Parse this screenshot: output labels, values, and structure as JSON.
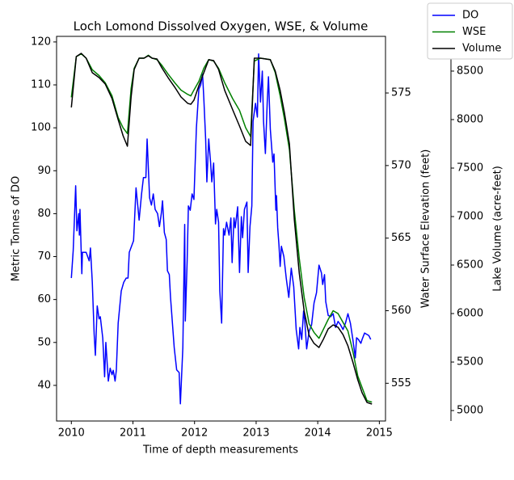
{
  "chart_data": {
    "type": "line",
    "title": "Loch Lomond Dissolved Oxygen, WSE, & Volume",
    "x_label": "Time of depth measurements",
    "y_label": "Metric Tonnes of DO",
    "y2_label": "Water Surface Elevation (feet)",
    "y3_label": "Lake Volume (acre-feet)",
    "xlim": [
      2009.76,
      2015.1
    ],
    "xticks": [
      2010,
      2011,
      2012,
      2013,
      2014,
      2015
    ],
    "ylim": [
      31.7,
      121.3
    ],
    "yticks": [
      40,
      50,
      60,
      70,
      80,
      90,
      100,
      110,
      120
    ],
    "y2lim": [
      552.4,
      578.9
    ],
    "y2ticks": [
      555,
      560,
      565,
      570,
      575
    ],
    "y3lim": [
      4892,
      8858
    ],
    "y3ticks": [
      5000,
      5500,
      6000,
      6500,
      7000,
      7500,
      8000,
      8500
    ],
    "legend": "upper right",
    "series": [
      {
        "name": "DO",
        "color": "#0000ff",
        "axis": "y",
        "x": [
          2010.0,
          2010.03,
          2010.07,
          2010.09,
          2010.12,
          2010.13,
          2010.14,
          2010.17,
          2010.18,
          2010.24,
          2010.29,
          2010.31,
          2010.34,
          2010.37,
          2010.39,
          2010.42,
          2010.45,
          2010.47,
          2010.51,
          2010.54,
          2010.56,
          2010.6,
          2010.63,
          2010.66,
          2010.68,
          2010.71,
          2010.73,
          2010.76,
          2010.79,
          2010.81,
          2010.85,
          2010.89,
          2010.92,
          2010.94,
          2011.01,
          2011.05,
          2011.08,
          2011.1,
          2011.14,
          2011.17,
          2011.21,
          2011.23,
          2011.27,
          2011.3,
          2011.33,
          2011.36,
          2011.4,
          2011.43,
          2011.46,
          2011.48,
          2011.51,
          2011.54,
          2011.56,
          2011.59,
          2011.61,
          2011.67,
          2011.71,
          2011.75,
          2011.77,
          2011.81,
          2011.84,
          2011.85,
          2011.88,
          2011.9,
          2011.93,
          2011.96,
          2011.99,
          2012.03,
          2012.07,
          2012.1,
          2012.13,
          2012.15,
          2012.18,
          2012.2,
          2012.23,
          2012.26,
          2012.28,
          2012.31,
          2012.34,
          2012.36,
          2012.39,
          2012.41,
          2012.44,
          2012.47,
          2012.49,
          2012.52,
          2012.56,
          2012.59,
          2012.61,
          2012.64,
          2012.66,
          2012.7,
          2012.73,
          2012.76,
          2012.78,
          2012.81,
          2012.85,
          2012.87,
          2012.9,
          2012.93,
          2012.95,
          2012.99,
          2013.02,
          2013.04,
          2013.07,
          2013.1,
          2013.12,
          2013.15,
          2013.18,
          2013.2,
          2013.23,
          2013.27,
          2013.29,
          2013.32,
          2013.33,
          2013.35,
          2013.37,
          2013.39,
          2013.41,
          2013.45,
          2013.49,
          2013.53,
          2013.57,
          2013.61,
          2013.65,
          2013.69,
          2013.71,
          2013.74,
          2013.77,
          2013.79,
          2013.82,
          2013.86,
          2013.9,
          2013.94,
          2013.98,
          2014.02,
          2014.06,
          2014.08,
          2014.11,
          2014.13,
          2014.17,
          2014.21,
          2014.25,
          2014.29,
          2014.33,
          2014.37,
          2014.41,
          2014.45,
          2014.49,
          2014.53,
          2014.57,
          2014.61,
          2014.63,
          2014.66,
          2014.7,
          2014.72,
          2014.76,
          2014.83,
          2014.86
        ],
        "values": [
          65,
          71.4,
          86.5,
          76,
          80,
          75,
          81,
          66,
          71,
          71,
          69,
          72,
          64,
          52,
          47,
          58.5,
          55.5,
          56,
          51,
          42,
          50,
          41,
          44,
          42.5,
          43.5,
          41,
          43.5,
          54.5,
          59,
          62,
          64,
          65,
          65,
          71,
          73.7,
          86,
          81.6,
          78.5,
          84.6,
          88.4,
          88.4,
          97.4,
          83.7,
          82,
          84.6,
          81,
          80,
          77,
          80,
          83,
          75.6,
          74,
          66.7,
          65.8,
          60.5,
          48.8,
          43.6,
          43,
          35.7,
          48.8,
          77.5,
          55,
          69,
          81.8,
          80.8,
          84.6,
          83.3,
          100,
          109,
          110,
          112.5,
          107,
          97.4,
          87.4,
          97.4,
          92,
          87.4,
          91.8,
          77.6,
          81,
          78,
          62,
          54.5,
          76.5,
          75,
          78,
          75,
          79,
          68.6,
          79,
          76.7,
          81.6,
          66.3,
          79.3,
          74.4,
          81,
          82.7,
          66.3,
          77,
          81.8,
          101.5,
          105.7,
          102.5,
          117.2,
          106,
          113.2,
          101.5,
          94,
          106,
          111.9,
          99.7,
          92,
          93.9,
          80.8,
          84.2,
          76.7,
          72.8,
          67.7,
          72.4,
          70,
          64.8,
          60.5,
          67.3,
          63,
          53,
          48.5,
          53.5,
          50.7,
          57.3,
          54.9,
          48.5,
          52.6,
          54.1,
          59.2,
          61.6,
          68,
          66.2,
          63.5,
          65.8,
          59.5,
          56.3,
          56,
          56.7,
          53.5,
          54.9,
          54.1,
          53,
          54.5,
          56.7,
          54.5,
          50.7,
          46.4,
          51.1,
          50.7,
          49.8,
          50.7,
          52.2,
          51.6,
          50.7
        ]
      },
      {
        "name": "WSE",
        "color": "#008000",
        "axis": "y2",
        "x": [
          2010.0,
          2010.08,
          2010.16,
          2010.24,
          2010.34,
          2010.45,
          2010.55,
          2010.66,
          2010.76,
          2010.84,
          2010.91,
          2010.97,
          2011.02,
          2011.1,
          2011.18,
          2011.25,
          2011.31,
          2011.39,
          2011.47,
          2011.57,
          2011.68,
          2011.78,
          2011.89,
          2011.94,
          2011.99,
          2012.07,
          2012.15,
          2012.23,
          2012.31,
          2012.39,
          2012.49,
          2012.62,
          2012.73,
          2012.83,
          2012.91,
          2012.97,
          2013.07,
          2013.23,
          2013.31,
          2013.39,
          2013.46,
          2013.54,
          2013.62,
          2013.7,
          2013.78,
          2013.86,
          2013.94,
          2014.02,
          2014.09,
          2014.17,
          2014.25,
          2014.33,
          2014.41,
          2014.49,
          2014.57,
          2014.65,
          2014.72,
          2014.8,
          2014.88
        ],
        "values": [
          574.7,
          577.5,
          577.7,
          577.4,
          576.6,
          576.2,
          575.7,
          574.8,
          573.3,
          572.6,
          572.2,
          575.3,
          576.7,
          577.4,
          577.4,
          577.6,
          577.4,
          577.3,
          576.9,
          576.3,
          575.7,
          575.2,
          574.9,
          574.8,
          575.2,
          575.8,
          576.7,
          577.3,
          577.2,
          576.7,
          575.7,
          574.6,
          573.8,
          572.6,
          572.0,
          577.2,
          577.4,
          577.3,
          576.4,
          574.8,
          573.2,
          571.1,
          566.9,
          563.6,
          560.9,
          559.1,
          558.5,
          558.1,
          558.7,
          559.4,
          560.0,
          559.8,
          559.2,
          558.6,
          557.2,
          555.5,
          554.7,
          553.8,
          553.7
        ]
      },
      {
        "name": "Volume",
        "color": "#000000",
        "axis": "y3",
        "x": [
          2010.0,
          2010.08,
          2010.16,
          2010.24,
          2010.34,
          2010.45,
          2010.55,
          2010.66,
          2010.76,
          2010.84,
          2010.91,
          2010.97,
          2011.02,
          2011.1,
          2011.18,
          2011.25,
          2011.31,
          2011.39,
          2011.47,
          2011.57,
          2011.68,
          2011.78,
          2011.89,
          2011.94,
          2011.99,
          2012.07,
          2012.15,
          2012.23,
          2012.31,
          2012.39,
          2012.49,
          2012.62,
          2012.73,
          2012.83,
          2012.91,
          2012.97,
          2013.07,
          2013.23,
          2013.31,
          2013.39,
          2013.46,
          2013.54,
          2013.62,
          2013.7,
          2013.78,
          2013.86,
          2013.94,
          2014.02,
          2014.09,
          2014.17,
          2014.25,
          2014.33,
          2014.41,
          2014.49,
          2014.57,
          2014.65,
          2014.72,
          2014.8,
          2014.88
        ],
        "values": [
          8125,
          8650,
          8683,
          8633,
          8483,
          8433,
          8367,
          8217,
          8000,
          7833,
          7725,
          8233,
          8517,
          8633,
          8633,
          8658,
          8633,
          8625,
          8533,
          8433,
          8333,
          8233,
          8167,
          8158,
          8200,
          8350,
          8483,
          8617,
          8608,
          8517,
          8300,
          8100,
          7933,
          7775,
          7733,
          8633,
          8633,
          8617,
          8500,
          8300,
          8067,
          7750,
          6967,
          6417,
          6025,
          5775,
          5692,
          5650,
          5733,
          5842,
          5883,
          5858,
          5783,
          5667,
          5500,
          5317,
          5183,
          5083,
          5067
        ]
      }
    ]
  }
}
